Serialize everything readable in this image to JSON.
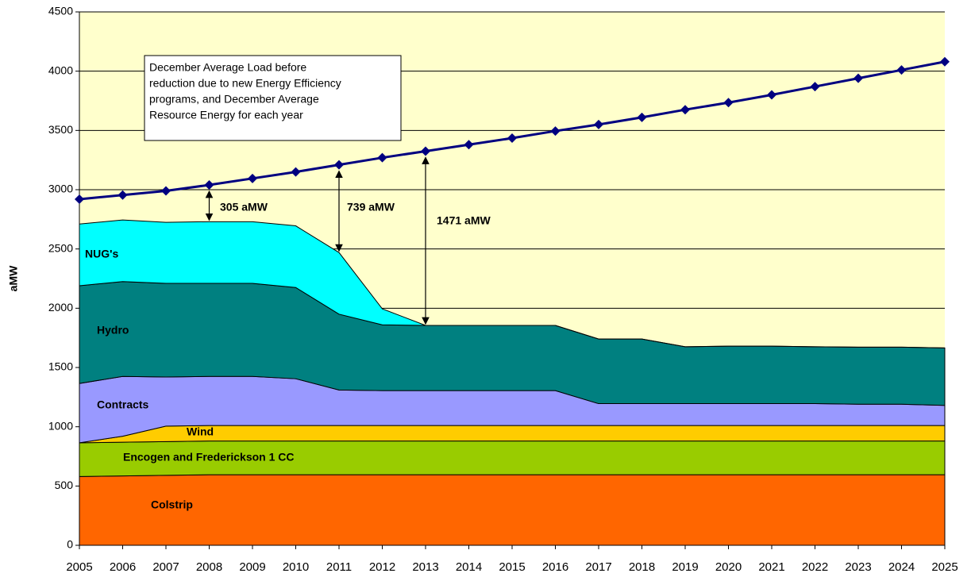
{
  "chart_data": {
    "type": "stacked-area-line",
    "y_label": "aMW",
    "categories": [
      "2005",
      "2006",
      "2007",
      "2008",
      "2009",
      "2010",
      "2011",
      "2012",
      "2013",
      "2014",
      "2015",
      "2016",
      "2017",
      "2018",
      "2019",
      "2020",
      "2021",
      "2022",
      "2023",
      "2024",
      "2025"
    ],
    "series": [
      {
        "name": "Colstrip",
        "color": "#ff6600",
        "values": [
          580,
          585,
          590,
          595,
          595,
          595,
          595,
          595,
          595,
          595,
          595,
          595,
          595,
          595,
          595,
          595,
          595,
          595,
          595,
          595,
          595
        ]
      },
      {
        "name": "Encogen and Frederickson 1 CC",
        "color": "#99cc00",
        "values": [
          285,
          285,
          285,
          285,
          285,
          285,
          285,
          285,
          285,
          285,
          285,
          285,
          285,
          285,
          285,
          285,
          285,
          285,
          285,
          285,
          285
        ]
      },
      {
        "name": "Wind",
        "color": "#ffcc00",
        "values": [
          0,
          50,
          130,
          130,
          130,
          130,
          130,
          130,
          130,
          130,
          130,
          130,
          130,
          130,
          130,
          130,
          130,
          130,
          130,
          130,
          130
        ]
      },
      {
        "name": "Contracts",
        "color": "#9999ff",
        "values": [
          500,
          505,
          415,
          415,
          415,
          395,
          300,
          295,
          295,
          295,
          295,
          295,
          185,
          185,
          185,
          185,
          185,
          185,
          180,
          180,
          170
        ]
      },
      {
        "name": "Hydro",
        "color": "#008080",
        "values": [
          825,
          800,
          790,
          785,
          785,
          770,
          640,
          555,
          550,
          550,
          550,
          550,
          545,
          545,
          480,
          485,
          485,
          480,
          482,
          482,
          485
        ]
      },
      {
        "name": "NUG's",
        "color": "#00ffff",
        "values": [
          520,
          520,
          515,
          520,
          520,
          520,
          520,
          135,
          0,
          0,
          0,
          0,
          0,
          0,
          0,
          0,
          0,
          0,
          0,
          0,
          0
        ]
      }
    ],
    "load": {
      "type": "line",
      "color": "#000080",
      "values": [
        2920,
        2955,
        2990,
        3040,
        3095,
        3150,
        3210,
        3270,
        3325,
        3380,
        3435,
        3495,
        3550,
        3610,
        3675,
        3735,
        3800,
        3870,
        3940,
        4010,
        4080
      ]
    },
    "annotation_box": [
      "December Average Load before",
      "reduction due to new Energy Efficiency",
      "programs, and December Average",
      "Resource Energy  for each year"
    ],
    "gap_labels": [
      "305 aMW",
      "739 aMW",
      "1471 aMW"
    ],
    "ylim": [
      0,
      4500
    ],
    "yticks": [
      0,
      500,
      1000,
      1500,
      2000,
      2500,
      3000,
      3500,
      4000,
      4500
    ],
    "grid": true,
    "background": "#ffffcc"
  }
}
